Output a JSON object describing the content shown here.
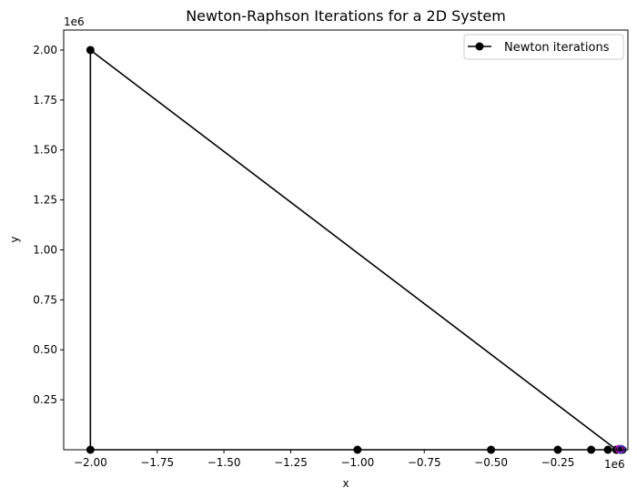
{
  "chart_data": {
    "type": "line",
    "title": "Newton-Raphson Iterations for a 2D System",
    "xlabel": "x",
    "ylabel": "y",
    "x_offset_text": "1e6",
    "y_offset_text": "1e6",
    "xlim": [
      -2.1,
      0.0125
    ],
    "ylim": [
      0.0,
      2.1
    ],
    "xticks": [
      -2.0,
      -1.75,
      -1.5,
      -1.25,
      -1.0,
      -0.75,
      -0.5,
      -0.25
    ],
    "xtick_labels": [
      "−2.00",
      "−1.75",
      "−1.50",
      "−1.25",
      "−1.00",
      "−0.75",
      "−0.50",
      "−0.25"
    ],
    "yticks": [
      0.25,
      0.5,
      0.75,
      1.0,
      1.25,
      1.5,
      1.75,
      2.0
    ],
    "ytick_labels": [
      "0.25",
      "0.50",
      "0.75",
      "1.00",
      "1.25",
      "1.50",
      "1.75",
      "2.00"
    ],
    "legend": {
      "placement": "top-right",
      "entries": [
        "Newton iterations"
      ]
    },
    "grid": false,
    "series": [
      {
        "name": "Newton iterations",
        "color": "#000000",
        "marker": "circle",
        "x": [
          -0.03,
          -2.0,
          -2.0,
          -1.0,
          -0.5,
          -0.25,
          -0.125,
          -0.0625,
          -0.03125,
          -0.015625,
          -0.0078
        ],
        "y": [
          0.0,
          2.0,
          0.0,
          0.0,
          0.0,
          0.0,
          0.0,
          0.0,
          0.0,
          0.0,
          0.0
        ]
      }
    ],
    "contour_marks": [
      {
        "x": -0.02,
        "y": 0.003,
        "color": "#cc00cc"
      },
      {
        "x": -0.012,
        "y": 0.003,
        "color": "#4444cc"
      }
    ]
  }
}
